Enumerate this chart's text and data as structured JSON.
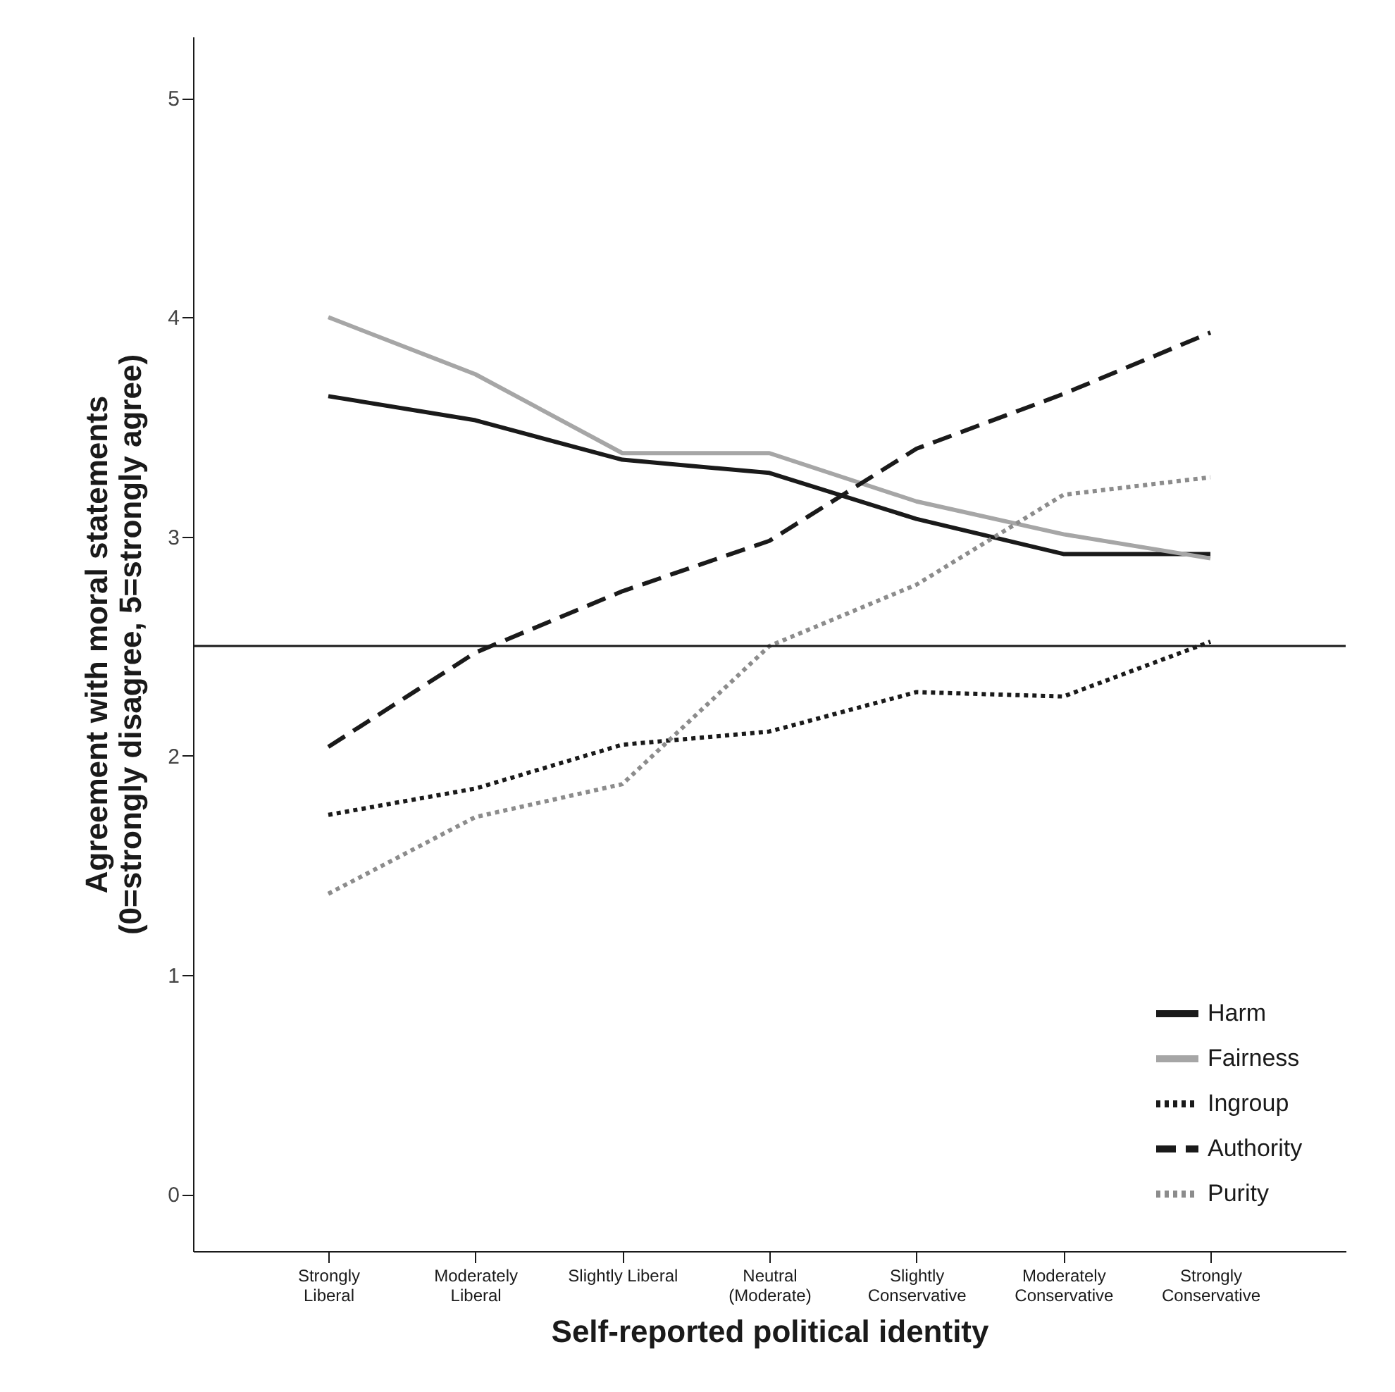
{
  "chart_data": {
    "type": "line",
    "xlabel": "Self-reported political identity",
    "ylabel": "Agreement with moral statements\n(0=strongly disagree, 5=strongly agree)",
    "categories": [
      "Strongly\nLiberal",
      "Moderately\nLiberal",
      "Slightly Liberal",
      "Neutral\n(Moderate)",
      "Slightly\nConservative",
      "Moderately\nConservative",
      "Strongly\nConservative"
    ],
    "series": [
      {
        "name": "Harm",
        "color": "#1a1a1a",
        "line_style": "solid",
        "values": [
          3.64,
          3.53,
          3.35,
          3.29,
          3.08,
          2.92,
          2.92
        ]
      },
      {
        "name": "Fairness",
        "color": "#a6a6a6",
        "line_style": "solid",
        "values": [
          4.0,
          3.74,
          3.38,
          3.38,
          3.16,
          3.01,
          2.9
        ]
      },
      {
        "name": "Ingroup",
        "color": "#1a1a1a",
        "line_style": "dotted",
        "values": [
          1.73,
          1.85,
          2.05,
          2.11,
          2.29,
          2.27,
          2.52
        ]
      },
      {
        "name": "Authority",
        "color": "#1a1a1a",
        "line_style": "dashed",
        "values": [
          2.04,
          2.47,
          2.75,
          2.98,
          3.4,
          3.65,
          3.93
        ]
      },
      {
        "name": "Purity",
        "color": "#8c8c8c",
        "line_style": "dotted",
        "values": [
          1.37,
          1.72,
          1.87,
          2.5,
          2.78,
          3.19,
          3.27
        ]
      }
    ],
    "ylim": [
      -0.26,
      5.28
    ],
    "yticks": [
      0,
      1,
      2,
      3,
      4,
      5
    ],
    "ref_lines": [
      {
        "axis": "y",
        "value": 2.5,
        "color": "#1a1a1a",
        "line_style": "solid"
      }
    ],
    "grid": false,
    "legend": "bottom right"
  }
}
